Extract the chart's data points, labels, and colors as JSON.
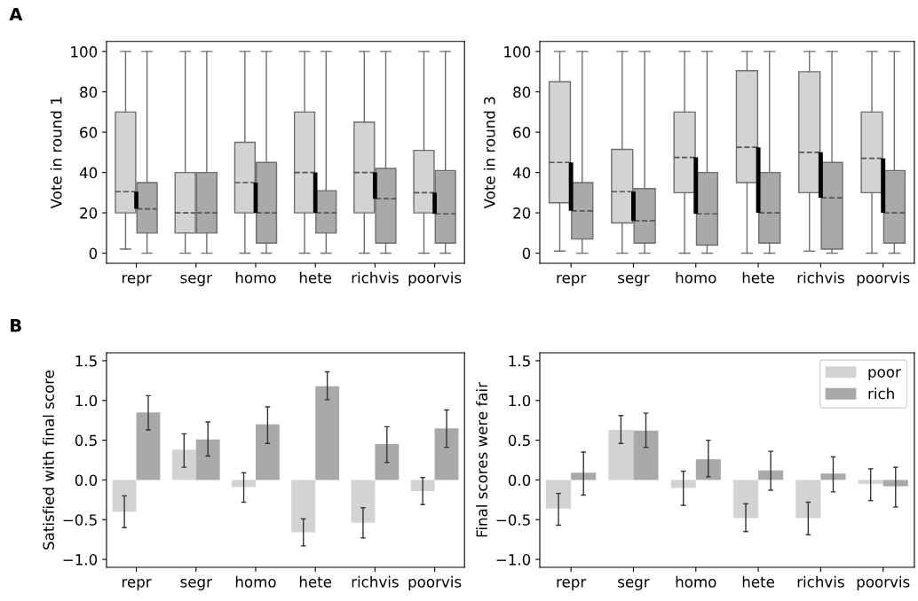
{
  "chart_data": [
    {
      "type": "box",
      "annotations": [
        "A"
      ],
      "ylabel": "Vote in round 1",
      "categories": [
        "repr",
        "segr",
        "homo",
        "hete",
        "richvis",
        "poorvis"
      ],
      "ylim": [
        -5,
        105
      ],
      "yticks": [
        0,
        20,
        40,
        60,
        80,
        100
      ],
      "grid": false,
      "legend": false,
      "series": [
        {
          "color": "#d3d3d3",
          "boxes": [
            {
              "low": 2,
              "q1": 20,
              "median": 30.5,
              "q3": 70,
              "high": 100
            },
            {
              "low": 0,
              "q1": 10,
              "median": 20,
              "q3": 40,
              "high": 100
            },
            {
              "low": 0,
              "q1": 20,
              "median": 35,
              "q3": 55,
              "high": 100
            },
            {
              "low": 0,
              "q1": 20,
              "median": 40,
              "q3": 70,
              "high": 100
            },
            {
              "low": 0,
              "q1": 20,
              "median": 40,
              "q3": 65,
              "high": 100
            },
            {
              "low": 0,
              "q1": 20,
              "median": 30,
              "q3": 51,
              "high": 100
            }
          ]
        },
        {
          "color": "#a9a9a9",
          "boxes": [
            {
              "low": 0,
              "q1": 10,
              "median": 22,
              "q3": 35,
              "high": 100
            },
            {
              "low": 0,
              "q1": 10,
              "median": 20,
              "q3": 40,
              "high": 100
            },
            {
              "low": 0,
              "q1": 5,
              "median": 20,
              "q3": 45,
              "high": 100
            },
            {
              "low": 0,
              "q1": 10,
              "median": 20,
              "q3": 31,
              "high": 100
            },
            {
              "low": 0,
              "q1": 5,
              "median": 27,
              "q3": 42,
              "high": 100
            },
            {
              "low": 0,
              "q1": 5,
              "median": 19.5,
              "q3": 41,
              "high": 100
            }
          ]
        },
        {
          "type": "bar",
          "color": "#000000",
          "base": [
            22,
            null,
            20,
            20,
            27,
            19.5
          ],
          "values": [
            8.5,
            null,
            15,
            20,
            13,
            10.5
          ]
        }
      ]
    },
    {
      "type": "box",
      "ylabel": "Vote in round 3",
      "categories": [
        "repr",
        "segr",
        "homo",
        "hete",
        "richvis",
        "poorvis"
      ],
      "ylim": [
        -5,
        105
      ],
      "yticks": [
        0,
        20,
        40,
        60,
        80,
        100
      ],
      "grid": false,
      "legend": false,
      "series": [
        {
          "color": "#d3d3d3",
          "boxes": [
            {
              "low": 1,
              "q1": 25,
              "median": 45,
              "q3": 85,
              "high": 100
            },
            {
              "low": 0,
              "q1": 15,
              "median": 30.5,
              "q3": 51.5,
              "high": 100
            },
            {
              "low": 0,
              "q1": 30,
              "median": 47.5,
              "q3": 70,
              "high": 100
            },
            {
              "low": 0,
              "q1": 35,
              "median": 52.5,
              "q3": 90.5,
              "high": 100
            },
            {
              "low": 1,
              "q1": 30,
              "median": 50,
              "q3": 90,
              "high": 100
            },
            {
              "low": 0,
              "q1": 30,
              "median": 47,
              "q3": 70,
              "high": 100
            }
          ]
        },
        {
          "color": "#a9a9a9",
          "boxes": [
            {
              "low": 0,
              "q1": 7,
              "median": 21,
              "q3": 35,
              "high": 100
            },
            {
              "low": 0,
              "q1": 5,
              "median": 16,
              "q3": 32,
              "high": 100
            },
            {
              "low": 0,
              "q1": 4,
              "median": 19.5,
              "q3": 40,
              "high": 100
            },
            {
              "low": 0,
              "q1": 5,
              "median": 20,
              "q3": 40,
              "high": 100
            },
            {
              "low": 0,
              "q1": 2,
              "median": 27.5,
              "q3": 45,
              "high": 100
            },
            {
              "low": 0,
              "q1": 5,
              "median": 20,
              "q3": 41,
              "high": 100
            }
          ]
        },
        {
          "type": "bar",
          "color": "#000000",
          "base": [
            21,
            16,
            19.5,
            20,
            27.5,
            20
          ],
          "values": [
            24,
            14.5,
            28,
            32.5,
            22.5,
            27
          ]
        }
      ]
    },
    {
      "type": "bar",
      "annotations": [
        "B"
      ],
      "ylabel": "Satisfied with final score",
      "categories": [
        "repr",
        "segr",
        "homo",
        "hete",
        "richvis",
        "poorvis"
      ],
      "ylim": [
        -1.1,
        1.6
      ],
      "yticks": [
        {
          "value": -1.0,
          "label": "−1.0"
        },
        {
          "value": -0.5,
          "label": "−0.5"
        },
        {
          "value": 0.0,
          "label": "0.0"
        },
        {
          "value": 0.5,
          "label": "0.5"
        },
        {
          "value": 1.0,
          "label": "1.0"
        },
        {
          "value": 1.5,
          "label": "1.5"
        }
      ],
      "grid": false,
      "legend": false,
      "series": [
        {
          "color": "#d3d3d3",
          "values": [
            -0.4,
            0.38,
            -0.09,
            -0.66,
            -0.54,
            -0.14
          ],
          "errors": [
            [
              -0.6,
              -0.2
            ],
            [
              0.16,
              0.58
            ],
            [
              -0.28,
              0.09
            ],
            [
              -0.83,
              -0.49
            ],
            [
              -0.73,
              -0.35
            ],
            [
              -0.31,
              0.03
            ]
          ]
        },
        {
          "color": "#a9a9a9",
          "values": [
            0.85,
            0.51,
            0.7,
            1.18,
            0.45,
            0.65
          ],
          "errors": [
            [
              0.63,
              1.06
            ],
            [
              0.3,
              0.73
            ],
            [
              0.46,
              0.92
            ],
            [
              1.01,
              1.36
            ],
            [
              0.22,
              0.67
            ],
            [
              0.41,
              0.88
            ]
          ]
        }
      ]
    },
    {
      "type": "bar",
      "ylabel": "Final scores were fair",
      "categories": [
        "repr",
        "segr",
        "homo",
        "hete",
        "richvis",
        "poorvis"
      ],
      "ylim": [
        -1.1,
        1.6
      ],
      "yticks": [
        {
          "value": -1.0,
          "label": "−1.0"
        },
        {
          "value": -0.5,
          "label": "−0.5"
        },
        {
          "value": 0.0,
          "label": "0.0"
        },
        {
          "value": 0.5,
          "label": "0.5"
        },
        {
          "value": 1.0,
          "label": "1.0"
        },
        {
          "value": 1.5,
          "label": "1.5"
        }
      ],
      "grid": false,
      "legend": "top right",
      "series": [
        {
          "name": "poor",
          "color": "#d3d3d3",
          "values": [
            -0.36,
            0.63,
            -0.1,
            -0.48,
            -0.48,
            -0.05
          ],
          "errors": [
            [
              -0.57,
              -0.17
            ],
            [
              0.46,
              0.81
            ],
            [
              -0.32,
              0.11
            ],
            [
              -0.65,
              -0.3
            ],
            [
              -0.69,
              -0.28
            ],
            [
              -0.26,
              0.14
            ]
          ]
        },
        {
          "name": "rich",
          "color": "#a9a9a9",
          "values": [
            0.09,
            0.62,
            0.26,
            0.12,
            0.08,
            -0.08
          ],
          "errors": [
            [
              -0.19,
              0.35
            ],
            [
              0.41,
              0.84
            ],
            [
              0.04,
              0.5
            ],
            [
              -0.13,
              0.36
            ],
            [
              -0.15,
              0.29
            ],
            [
              -0.34,
              0.16
            ]
          ]
        }
      ]
    }
  ]
}
